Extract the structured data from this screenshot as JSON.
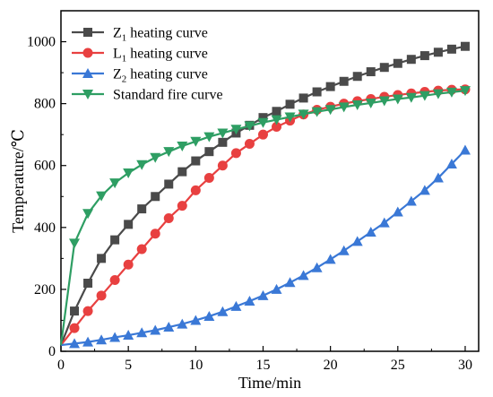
{
  "chart_data": {
    "type": "line",
    "xlabel": "Time/min",
    "ylabel": "Temperature/℃",
    "xlim": [
      0,
      31
    ],
    "ylim": [
      0,
      1100
    ],
    "xticks": [
      0,
      5,
      10,
      15,
      20,
      25,
      30
    ],
    "yticks": [
      0,
      200,
      400,
      600,
      800,
      1000
    ],
    "grid": false,
    "legend": "top-left",
    "series": [
      {
        "name": "Z1 heating curve",
        "legend_main": "Z",
        "legend_sub": "1",
        "legend_rest": " heating curve",
        "color": "#4a4a4a",
        "marker": "square",
        "x": [
          0,
          1,
          2,
          3,
          4,
          5,
          6,
          7,
          8,
          9,
          10,
          11,
          12,
          13,
          14,
          15,
          16,
          17,
          18,
          19,
          20,
          21,
          22,
          23,
          24,
          25,
          26,
          27,
          28,
          29,
          30
        ],
        "y": [
          20,
          130,
          220,
          300,
          360,
          410,
          460,
          500,
          540,
          580,
          615,
          645,
          675,
          705,
          730,
          755,
          775,
          798,
          818,
          838,
          855,
          872,
          888,
          903,
          917,
          930,
          943,
          955,
          966,
          976,
          985
        ]
      },
      {
        "name": "L1 heating curve",
        "legend_main": "L",
        "legend_sub": "1",
        "legend_rest": " heating curve",
        "color": "#e84040",
        "marker": "circle",
        "x": [
          0,
          1,
          2,
          3,
          4,
          5,
          6,
          7,
          8,
          9,
          10,
          11,
          12,
          13,
          14,
          15,
          16,
          17,
          18,
          19,
          20,
          21,
          22,
          23,
          24,
          25,
          26,
          27,
          28,
          29,
          30
        ],
        "y": [
          20,
          75,
          130,
          180,
          230,
          280,
          330,
          380,
          430,
          470,
          520,
          560,
          600,
          640,
          670,
          700,
          725,
          745,
          765,
          780,
          790,
          800,
          808,
          815,
          822,
          828,
          833,
          838,
          842,
          845,
          846
        ]
      },
      {
        "name": "Z2 heating curve",
        "legend_main": "Z",
        "legend_sub": "2",
        "legend_rest": " heating curve",
        "color": "#3a78d6",
        "marker": "triangle-up",
        "x": [
          0,
          1,
          2,
          3,
          4,
          5,
          6,
          7,
          8,
          9,
          10,
          11,
          12,
          13,
          14,
          15,
          16,
          17,
          18,
          19,
          20,
          21,
          22,
          23,
          24,
          25,
          26,
          27,
          28,
          29,
          30
        ],
        "y": [
          20,
          25,
          30,
          37,
          45,
          52,
          60,
          68,
          78,
          88,
          100,
          113,
          128,
          145,
          162,
          180,
          200,
          222,
          245,
          270,
          297,
          325,
          355,
          385,
          415,
          450,
          485,
          520,
          560,
          605,
          650
        ]
      },
      {
        "name": "Standard fire curve",
        "legend_main": "Standard fire curve",
        "legend_sub": "",
        "legend_rest": "",
        "color": "#2e9e63",
        "marker": "triangle-down",
        "x": [
          0,
          1,
          2,
          3,
          4,
          5,
          6,
          7,
          8,
          9,
          10,
          11,
          12,
          13,
          14,
          15,
          16,
          17,
          18,
          19,
          20,
          21,
          22,
          23,
          24,
          25,
          26,
          27,
          28,
          29,
          30
        ],
        "y": [
          20,
          349,
          445,
          502,
          544,
          576,
          603,
          626,
          645,
          663,
          678,
          693,
          705,
          717,
          728,
          739,
          748,
          757,
          766,
          774,
          781,
          789,
          796,
          802,
          809,
          815,
          820,
          826,
          832,
          837,
          842
        ]
      }
    ]
  }
}
